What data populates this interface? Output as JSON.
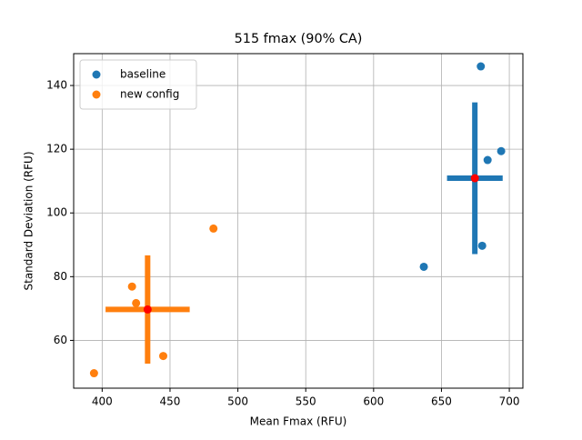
{
  "chart_data": {
    "type": "scatter",
    "title": "515 fmax (90% CA)",
    "x_label": "Mean Fmax (RFU)",
    "y_label": "Standard Deviation (RFU)",
    "xlim": [
      379,
      710
    ],
    "ylim": [
      45,
      150
    ],
    "xticks": [
      400,
      450,
      500,
      550,
      600,
      650,
      700
    ],
    "yticks": [
      60,
      80,
      100,
      120,
      140
    ],
    "grid": true,
    "legend": "upper left",
    "mean_color": "#ff0000",
    "series": [
      {
        "name": "baseline",
        "color": "#1f77b4",
        "x": [
          679,
          694,
          684,
          680,
          637
        ],
        "values": [
          146,
          119.4,
          116.6,
          89.7,
          83.1
        ],
        "mean": {
          "x": 674.6,
          "y": 110.9,
          "xerr": 20.5,
          "yerr": 23.8
        }
      },
      {
        "name": "new config",
        "color": "#ff7f0e",
        "x": [
          394,
          422,
          425,
          445,
          482
        ],
        "values": [
          49.7,
          76.9,
          71.7,
          55.1,
          95.1
        ],
        "mean": {
          "x": 433.5,
          "y": 69.7,
          "xerr": 31,
          "yerr": 17
        }
      }
    ]
  }
}
